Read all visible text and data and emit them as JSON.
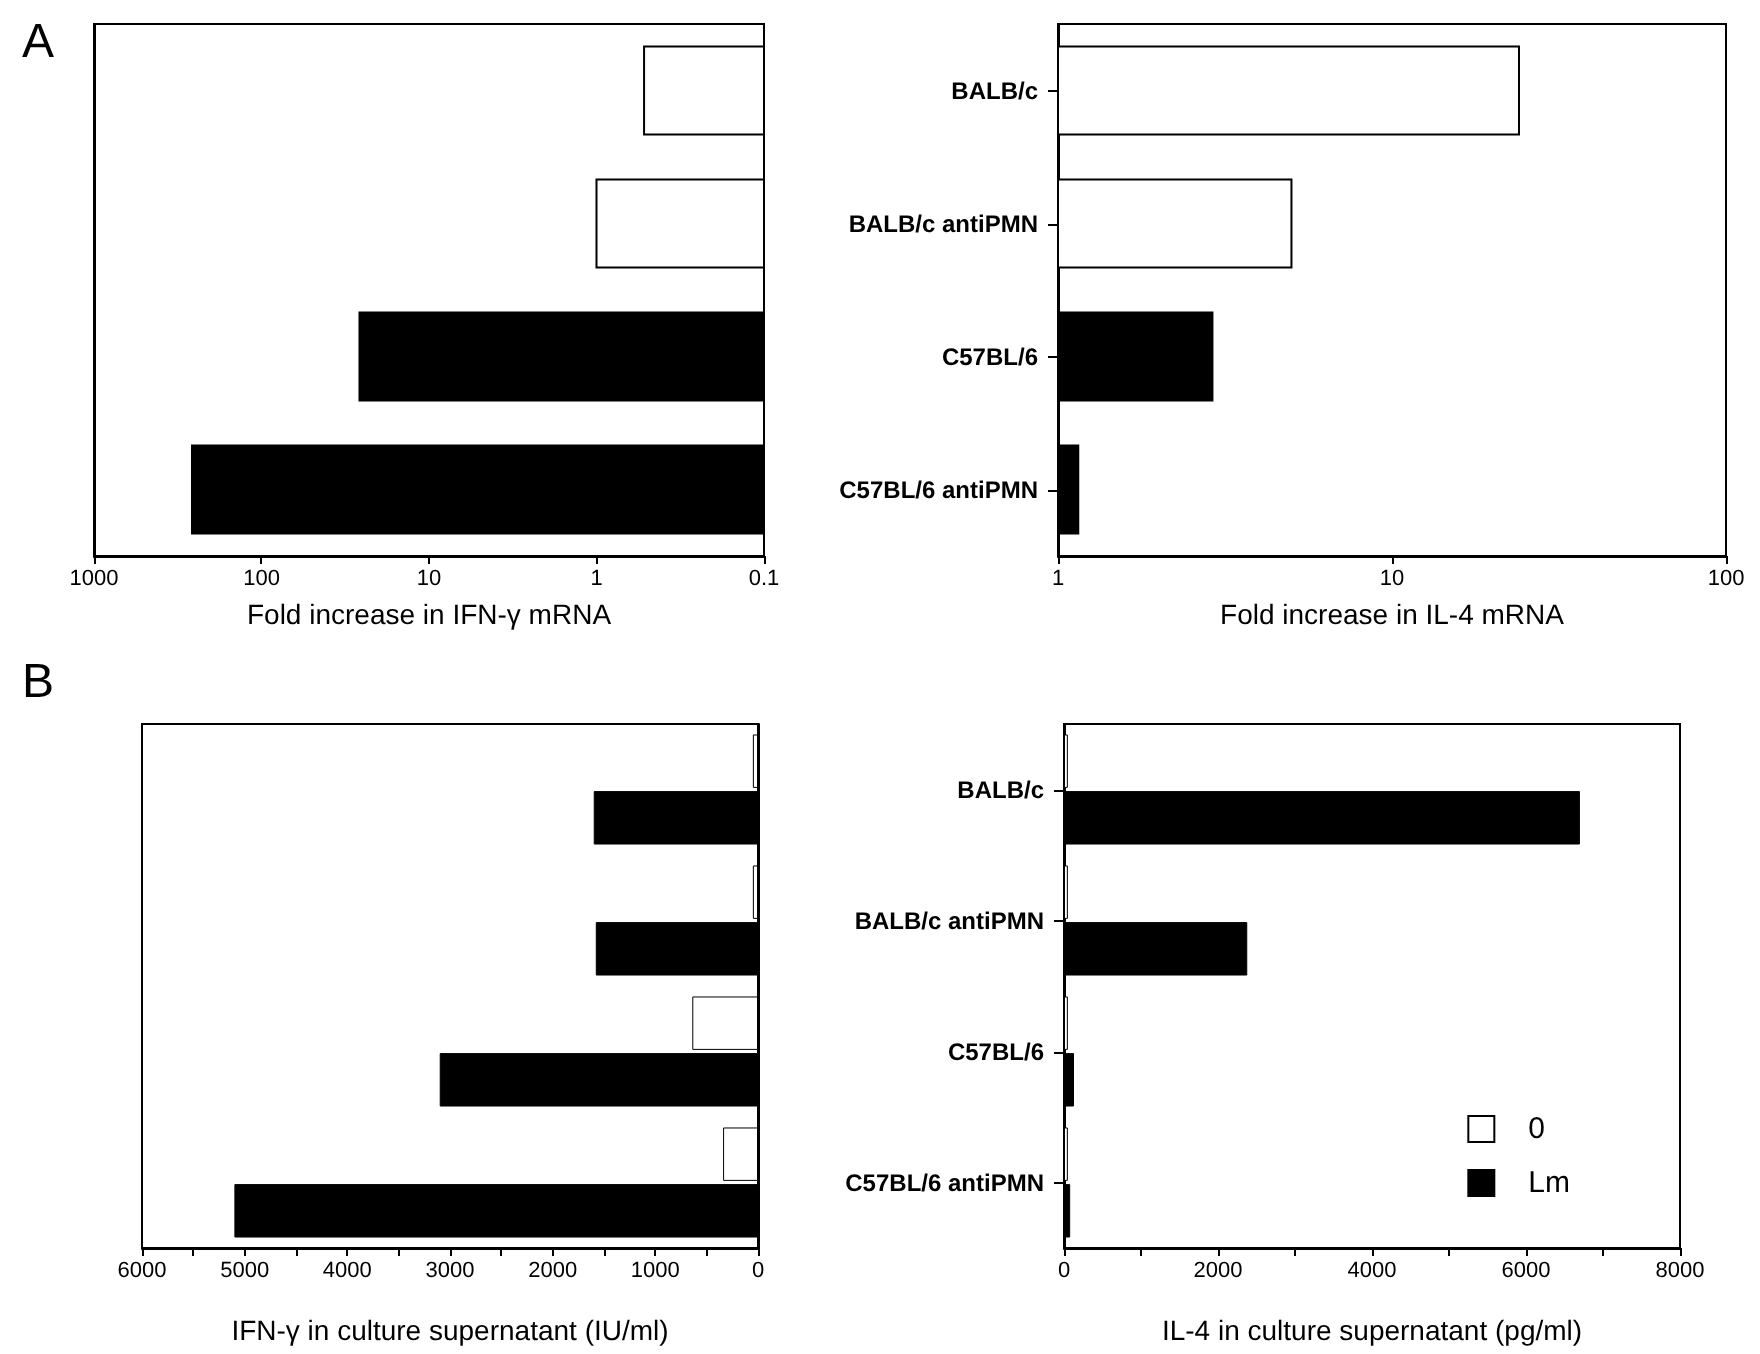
{
  "chart_data": [
    {
      "type": "bar",
      "title": "A",
      "orientation": "horizontal",
      "log": "x",
      "categories": [
        null,
        null,
        null,
        null
      ],
      "values": [
        0.52,
        1.0,
        26,
        260
      ],
      "colors": [
        "#ffffff",
        "#ffffff",
        "#000000",
        "#000000"
      ],
      "xlim": [
        1000,
        0.1
      ],
      "xticks": [
        1000,
        100,
        10,
        1,
        0.1
      ],
      "xlabel": "Fold increase in IFN-γ mRNA",
      "tick_labels": "x"
    },
    {
      "type": "bar",
      "orientation": "horizontal",
      "log": "x",
      "categories": [
        "BALB/c",
        "BALB/c antiPMN",
        "C57BL/6",
        "C57BL/6 antiPMN"
      ],
      "values": [
        24,
        5.0,
        2.9,
        1.15
      ],
      "colors": [
        "#ffffff",
        "#ffffff",
        "#000000",
        "#000000"
      ],
      "xlim": [
        1,
        100
      ],
      "xticks": [
        1,
        10,
        100
      ],
      "xlabel": "Fold increase in IL-4 mRNA"
    },
    {
      "type": "bar",
      "title": "B",
      "orientation": "horizontal",
      "categories": [
        null,
        null,
        null,
        null
      ],
      "series": [
        {
          "color": "#ffffff",
          "values": [
            50,
            50,
            640,
            340
          ]
        },
        {
          "color": "#000000",
          "values": [
            1600,
            1580,
            3100,
            5100
          ]
        }
      ],
      "xlim": [
        6000,
        0
      ],
      "xticks": [
        6000,
        {
          "value": 5500,
          "label": null
        },
        5000,
        {
          "value": 4500,
          "label": null
        },
        4000,
        {
          "value": 3500,
          "label": null
        },
        3000,
        {
          "value": 2500,
          "label": null
        },
        2000,
        {
          "value": 1500,
          "label": null
        },
        1000,
        {
          "value": 500,
          "label": null
        },
        0
      ],
      "xlabel": "IFN-γ in culture supernatant (IU/ml)",
      "tick_labels": "x"
    },
    {
      "type": "bar",
      "orientation": "horizontal",
      "categories": [
        "BALB/c",
        "BALB/c antiPMN",
        "C57BL/6",
        "C57BL/6 antiPMN"
      ],
      "series": [
        {
          "name": "0",
          "color": "#ffffff",
          "values": [
            50,
            50,
            50,
            50
          ]
        },
        {
          "name": "Lm",
          "color": "#000000",
          "values": [
            6700,
            2380,
            130,
            80
          ]
        }
      ],
      "xlim": [
        0,
        8000
      ],
      "xticks": [
        0,
        {
          "value": 1000,
          "label": null
        },
        2000,
        {
          "value": 3000,
          "label": null
        },
        4000,
        {
          "value": 5000,
          "label": null
        },
        6000,
        {
          "value": 7000,
          "label": null
        },
        8000
      ],
      "xlabel": "IL-4 in culture supernatant (pg/ml)",
      "legend": "bottom right"
    }
  ]
}
